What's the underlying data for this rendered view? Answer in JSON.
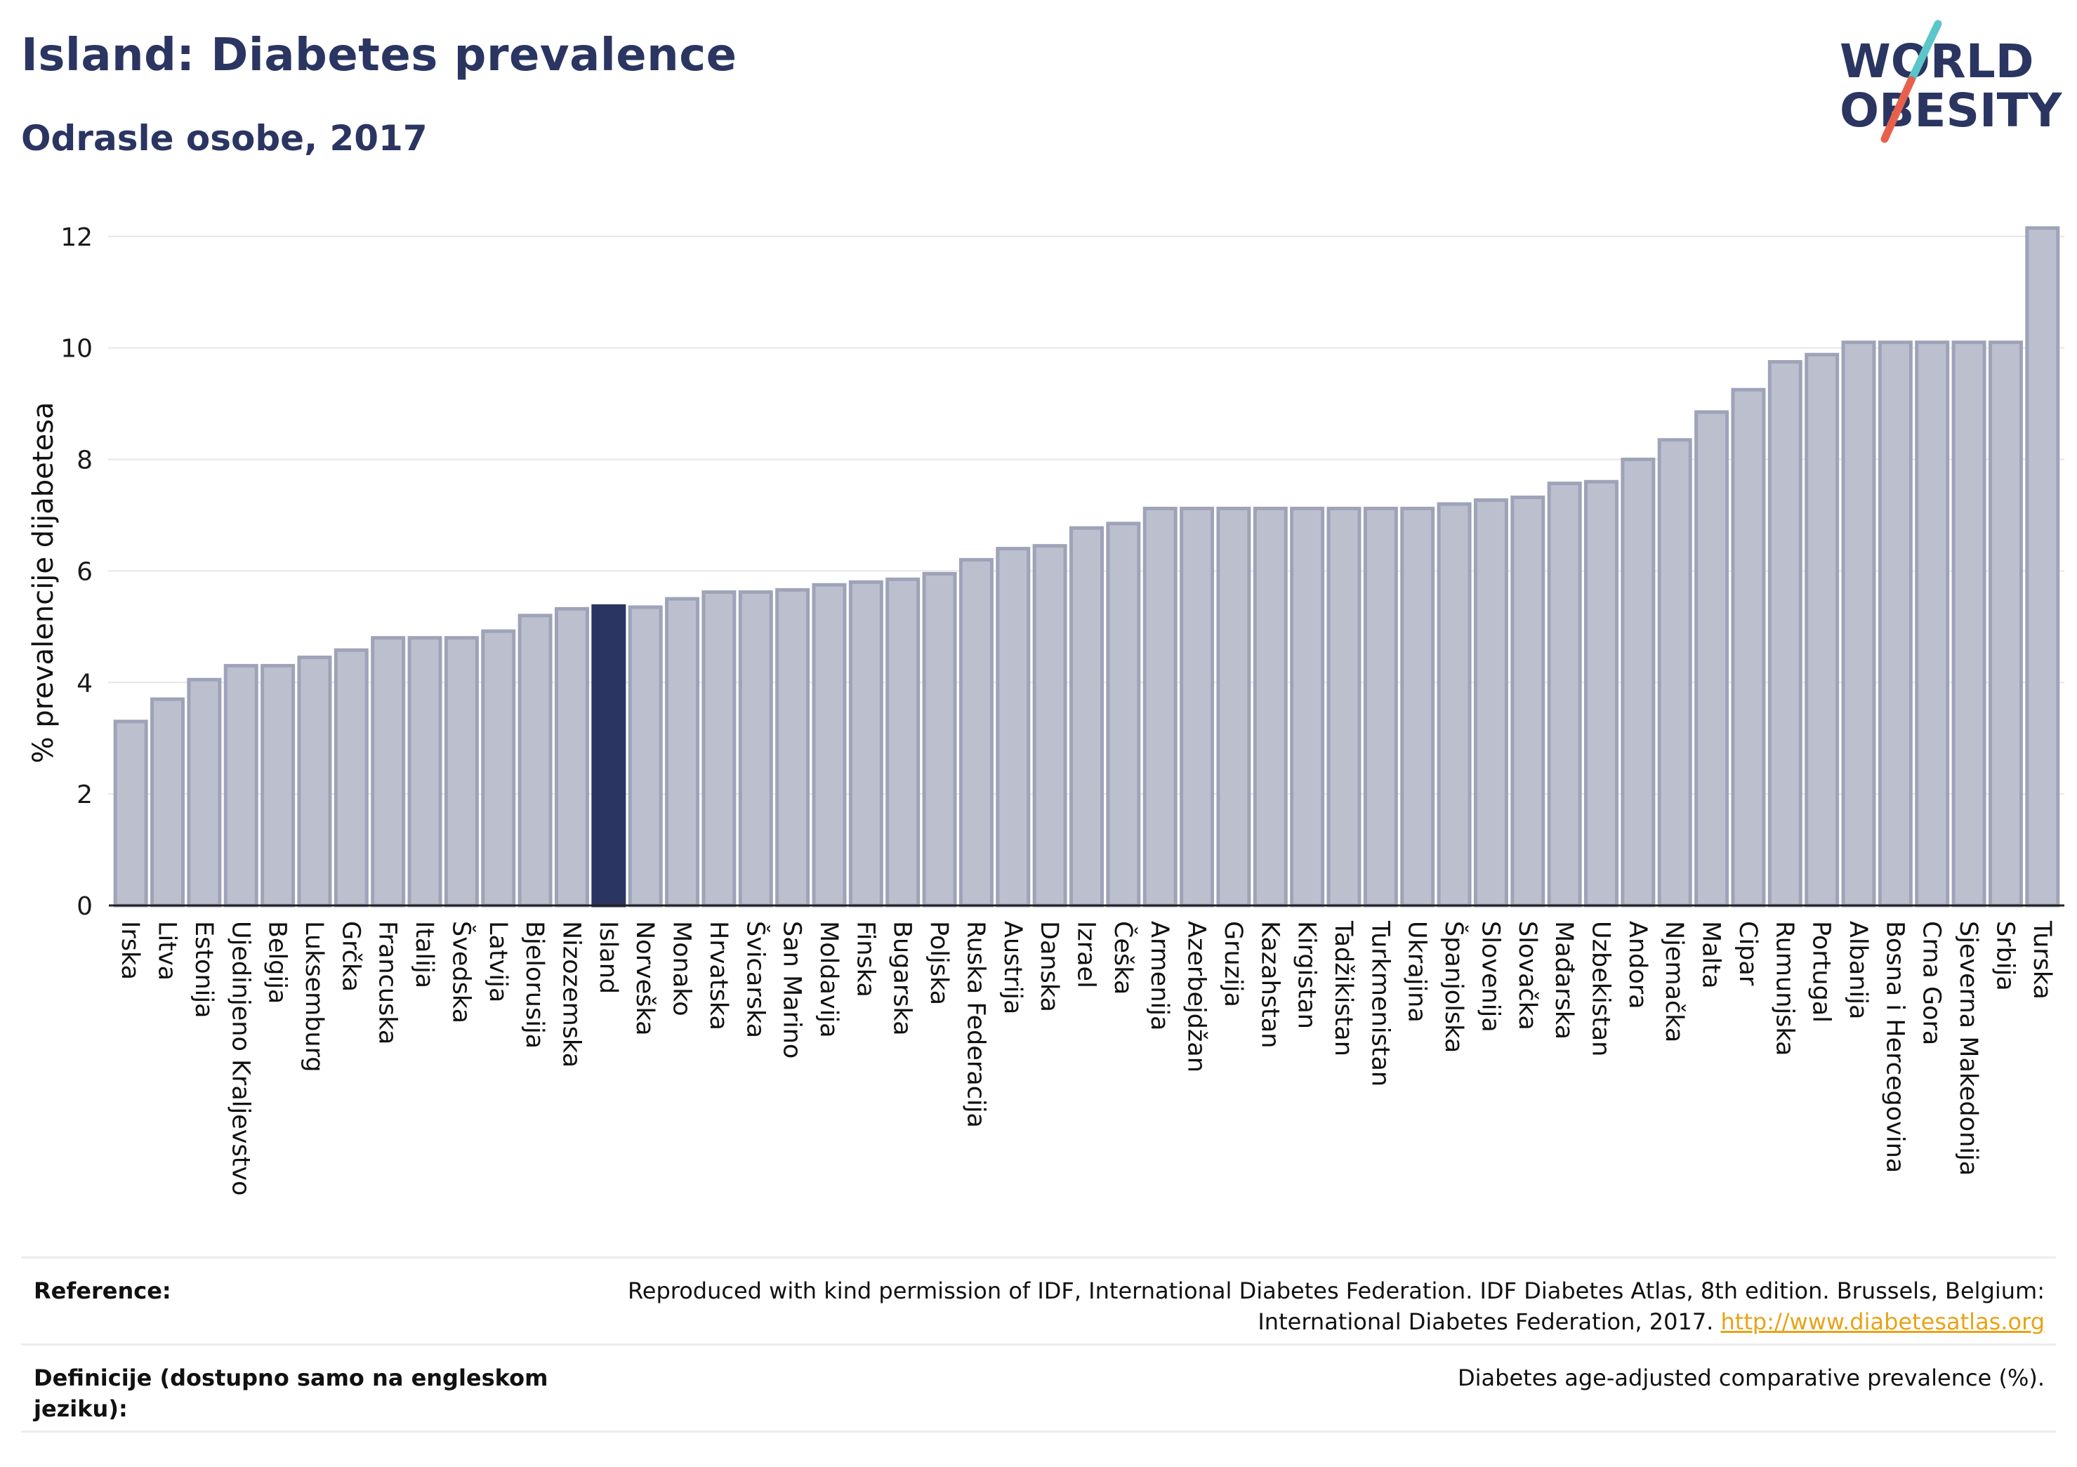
{
  "header": {
    "title": "Island: Diabetes prevalence",
    "subtitle": "Odrasle osobe, 2017"
  },
  "logo": {
    "line1": "WORLD",
    "line2": "OBESITY",
    "slash_colors": [
      "#5bc5c9",
      "#e8604c"
    ],
    "text_color": "#2a3561"
  },
  "chart_data": {
    "type": "bar",
    "ylabel": "% prevalencije dijabetesa",
    "xlabel": "",
    "ylim": [
      0,
      12.4
    ],
    "yticks": [
      0,
      2,
      4,
      6,
      8,
      10,
      12
    ],
    "grid": true,
    "highlight": "Island",
    "colors": {
      "bar": "#bcbfce",
      "bar_edge": "#9ea3b8",
      "highlight": "#2a3561"
    },
    "categories": [
      "Irska",
      "Litva",
      "Estonija",
      "Ujedinjeno Kraljevstvo",
      "Belgija",
      "Luksemburg",
      "Grčka",
      "Francuska",
      "Italija",
      "Švedska",
      "Latvija",
      "Bjelorusija",
      "Nizozemska",
      "Island",
      "Norveška",
      "Monako",
      "Hrvatska",
      "Švicarska",
      "San Marino",
      "Moldavija",
      "Finska",
      "Bugarska",
      "Poljska",
      "Ruska Federacija",
      "Austrija",
      "Danska",
      "Izrael",
      "Češka",
      "Armenija",
      "Azerbejdžan",
      "Gruzija",
      "Kazahstan",
      "Kirgistan",
      "Tadžikistan",
      "Turkmenistan",
      "Ukrajina",
      "Španjolska",
      "Slovenija",
      "Slovačka",
      "Mađarska",
      "Uzbekistan",
      "Andora",
      "Njemačka",
      "Malta",
      "Cipar",
      "Rumunjska",
      "Portugal",
      "Albanija",
      "Bosna i Hercegovina",
      "Crna Gora",
      "Sjeverna Makedonija",
      "Srbija",
      "Turska"
    ],
    "values": [
      3.3,
      3.7,
      4.05,
      4.3,
      4.3,
      4.45,
      4.58,
      4.8,
      4.8,
      4.8,
      4.92,
      5.2,
      5.32,
      5.37,
      5.35,
      5.5,
      5.62,
      5.62,
      5.66,
      5.75,
      5.8,
      5.85,
      5.95,
      6.2,
      6.4,
      6.45,
      6.77,
      6.85,
      7.12,
      7.12,
      7.12,
      7.12,
      7.12,
      7.12,
      7.12,
      7.12,
      7.2,
      7.27,
      7.32,
      7.57,
      7.6,
      8.0,
      8.35,
      8.85,
      9.25,
      9.75,
      9.88,
      10.1,
      10.1,
      10.1,
      10.1,
      10.1,
      12.15
    ]
  },
  "references": {
    "reference_label": "Reference:",
    "reference_text_line1": "Reproduced with kind permission of IDF, International Diabetes Federation. IDF Diabetes Atlas, 8th edition. Brussels, Belgium:",
    "reference_text_line2": "International Diabetes Federation, 2017.",
    "reference_link": "http://www.diabetesatlas.org",
    "definition_label_line1": "Definicije (dostupno samo na engleskom",
    "definition_label_line2": "jeziku):",
    "definition_text": "Diabetes age-adjusted comparative prevalence (%)."
  }
}
